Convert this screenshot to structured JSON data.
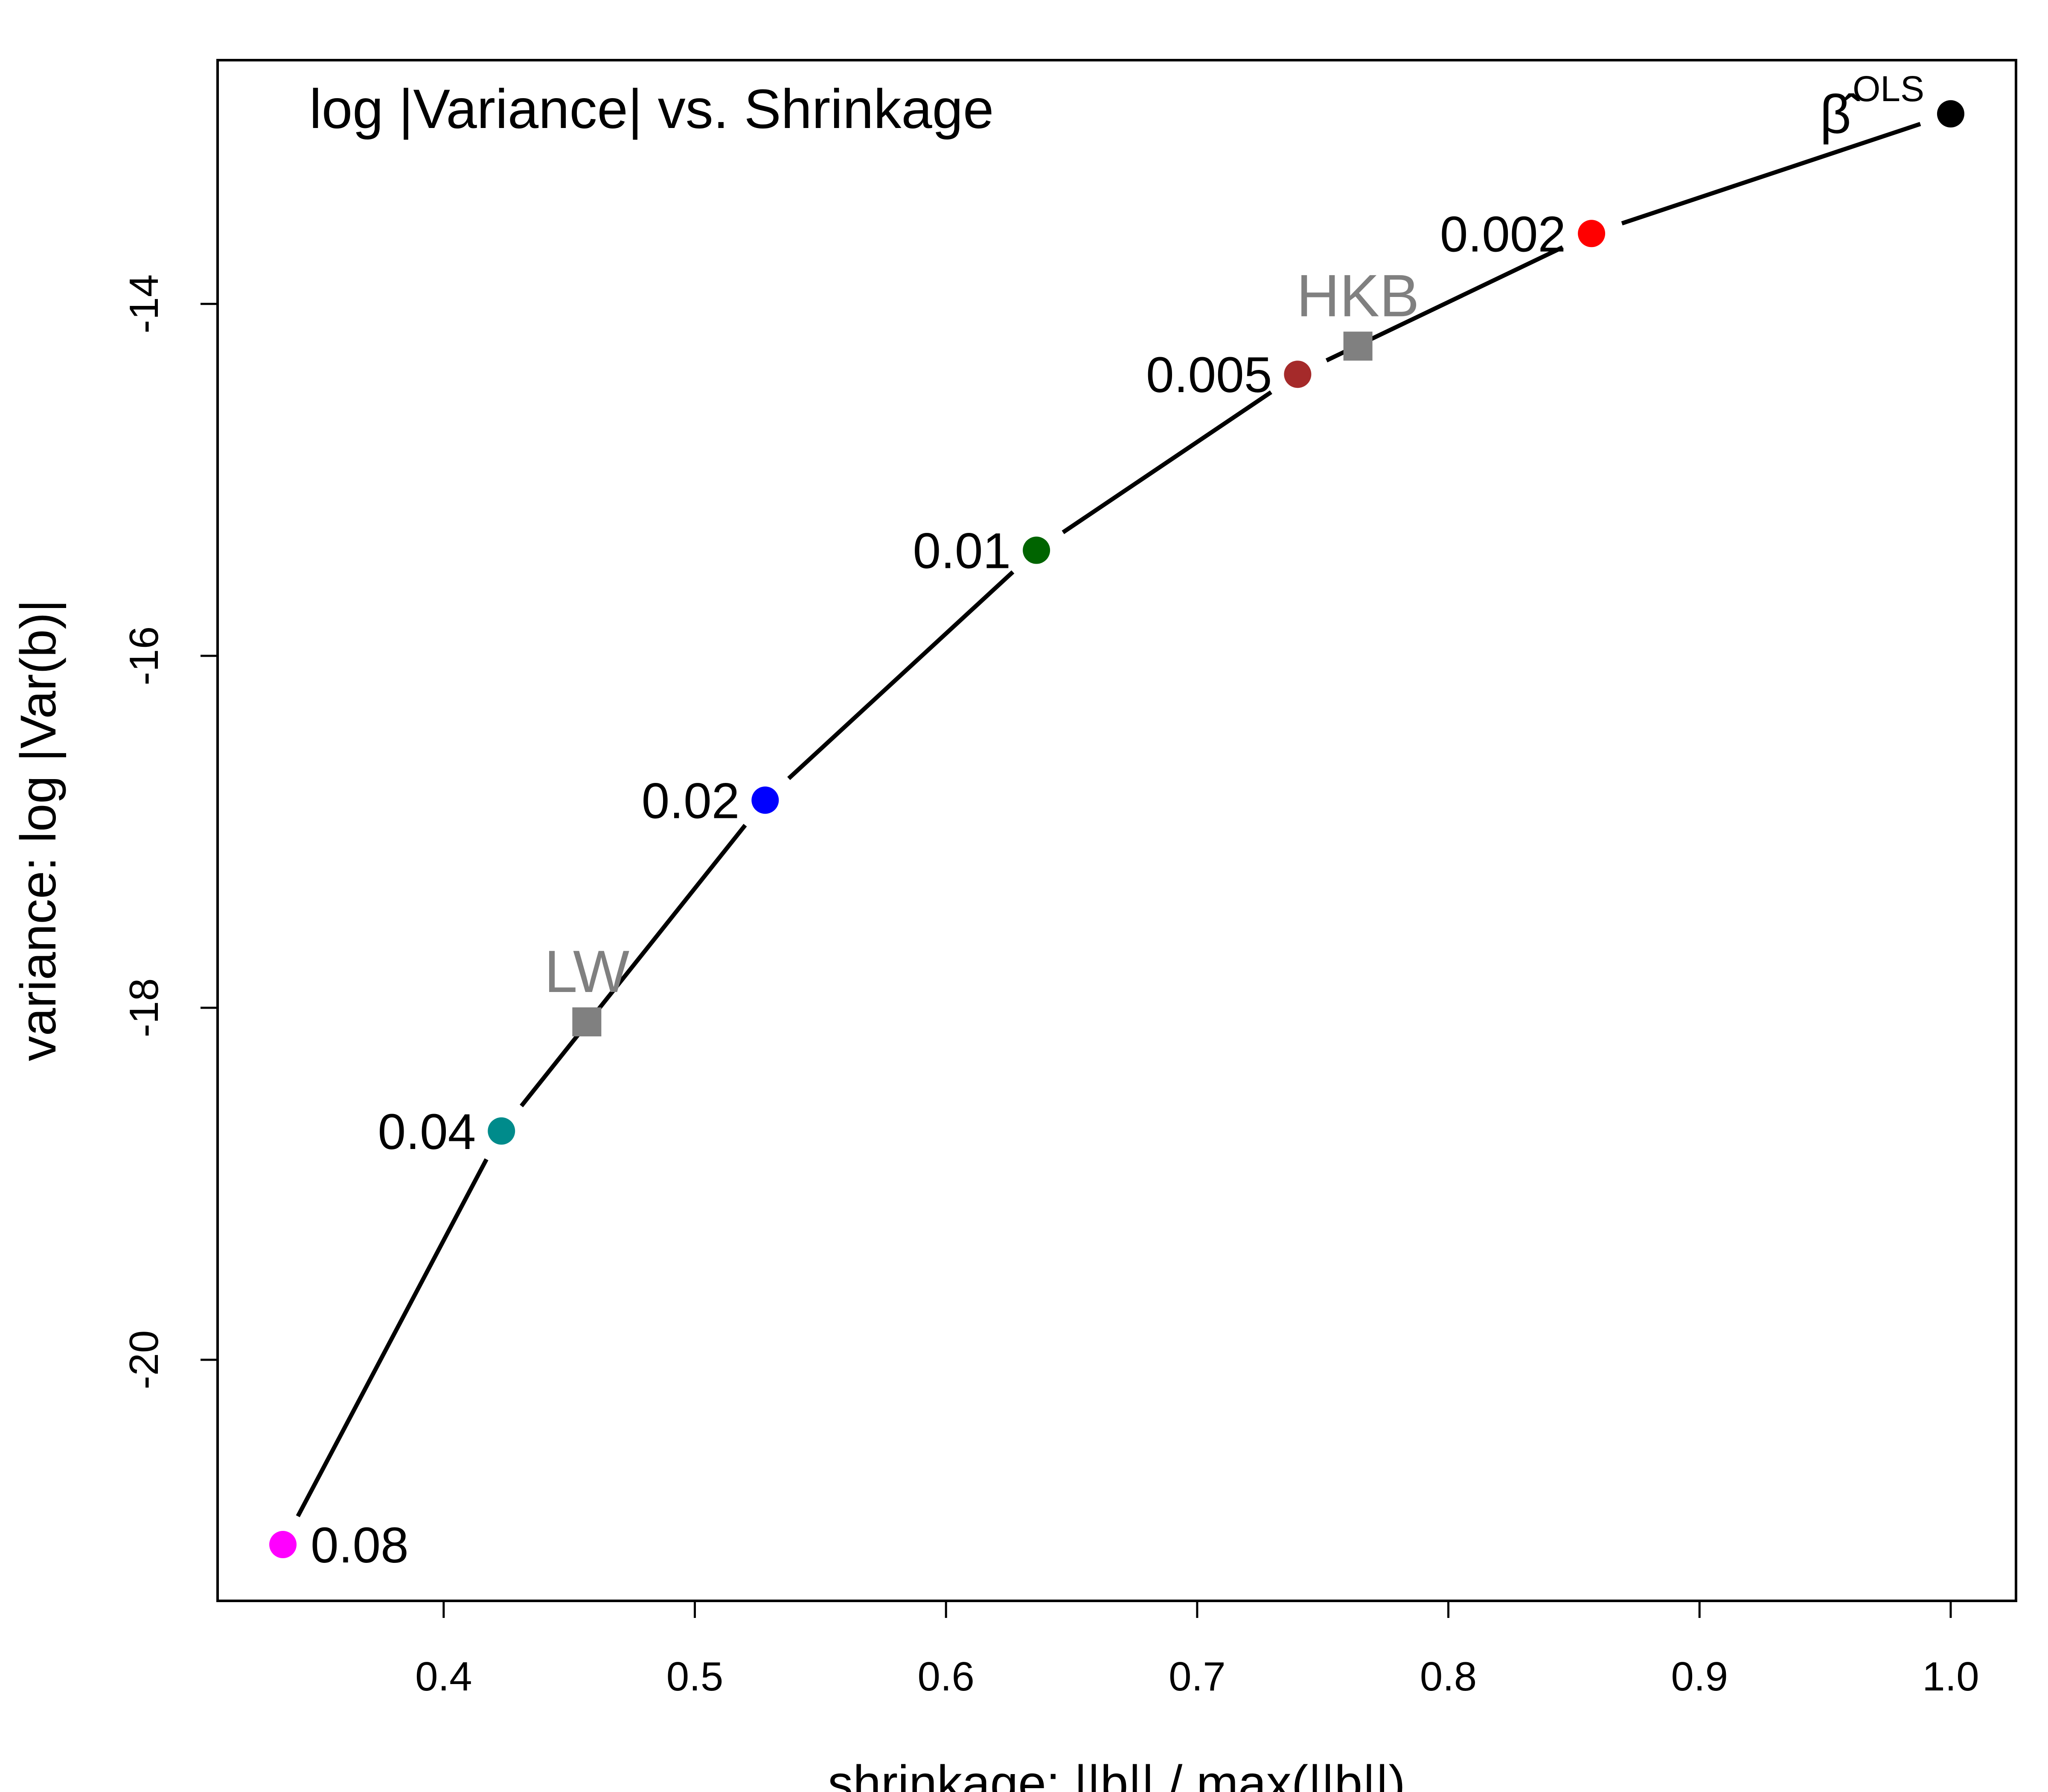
{
  "chart_data": {
    "type": "line",
    "title": "log |Variance| vs. Shrinkage",
    "xlabel": "shrinkage: ||b|| / max(||b||)",
    "ylabel": "variance: log |Var(b)|",
    "xlim": [
      0.31,
      1.026
    ],
    "ylim": [
      -21.37,
      -12.615
    ],
    "x_ticks": [
      0.4,
      0.5,
      0.6,
      0.7,
      0.8,
      0.9,
      1.0
    ],
    "x_tick_labels": [
      "0.4",
      "0.5",
      "0.6",
      "0.7",
      "0.8",
      "0.9",
      "1.0"
    ],
    "y_ticks": [
      -20,
      -18,
      -16,
      -14
    ],
    "y_tick_labels": [
      "-20",
      "-18",
      "-16",
      "-14"
    ],
    "grid": false,
    "curve": {
      "x": [
        0.336,
        0.423,
        0.528,
        0.636,
        0.74,
        0.857,
        1.0
      ],
      "y": [
        -21.05,
        -18.7,
        -16.82,
        -15.4,
        -14.4,
        -13.6,
        -12.92
      ]
    },
    "points": [
      {
        "label": "0.08",
        "x": 0.336,
        "y": -21.05,
        "color": "#ff00ff",
        "label_side": "right"
      },
      {
        "label": "0.04",
        "x": 0.423,
        "y": -18.7,
        "color": "#008b8b",
        "label_side": "left"
      },
      {
        "label": "0.02",
        "x": 0.528,
        "y": -16.82,
        "color": "#0000ff",
        "label_side": "left"
      },
      {
        "label": "0.01",
        "x": 0.636,
        "y": -15.4,
        "color": "#006400",
        "label_side": "left"
      },
      {
        "label": "0.005",
        "x": 0.74,
        "y": -14.4,
        "color": "#a52a2a",
        "label_side": "left"
      },
      {
        "label": "0.002",
        "x": 0.857,
        "y": -13.6,
        "color": "#ff0000",
        "label_side": "left"
      },
      {
        "label": "β̂",
        "superscript": "OLS",
        "x": 1.0,
        "y": -12.92,
        "color": "#000000",
        "label_side": "left"
      }
    ],
    "estimators": [
      {
        "label": "LW",
        "x": 0.457,
        "y": -18.08,
        "color": "#808080"
      },
      {
        "label": "HKB",
        "x": 0.764,
        "y": -14.24,
        "color": "#808080"
      }
    ]
  }
}
